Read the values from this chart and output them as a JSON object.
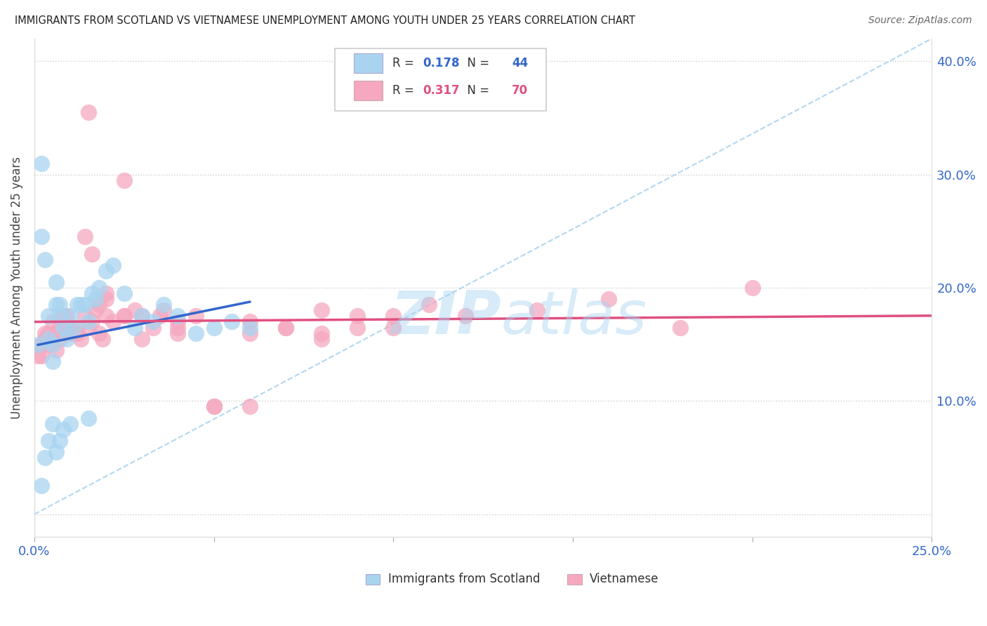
{
  "title": "IMMIGRANTS FROM SCOTLAND VS VIETNAMESE UNEMPLOYMENT AMONG YOUTH UNDER 25 YEARS CORRELATION CHART",
  "source": "Source: ZipAtlas.com",
  "ylabel": "Unemployment Among Youth under 25 years",
  "xlim": [
    0.0,
    0.25
  ],
  "ylim": [
    -0.02,
    0.42
  ],
  "y_ticks": [
    0.0,
    0.1,
    0.2,
    0.3,
    0.4
  ],
  "y_tick_labels": [
    "",
    "10.0%",
    "20.0%",
    "30.0%",
    "40.0%"
  ],
  "scotland_color": "#a8d4f0",
  "scottish_line_color": "#3366cc",
  "vietnamese_color": "#f5a8c0",
  "vietnamese_line_color": "#e05080",
  "dashed_line_color": "#a8d4f0",
  "scotland_R": 0.178,
  "scotland_N": 44,
  "vietnamese_R": 0.317,
  "vietnamese_N": 70,
  "background_color": "#ffffff",
  "watermark": "ZIPatlas",
  "scot_x": [
    0.001,
    0.002,
    0.002,
    0.003,
    0.004,
    0.004,
    0.005,
    0.005,
    0.006,
    0.006,
    0.007,
    0.007,
    0.008,
    0.009,
    0.01,
    0.011,
    0.012,
    0.013,
    0.014,
    0.015,
    0.016,
    0.017,
    0.018,
    0.02,
    0.022,
    0.025,
    0.028,
    0.03,
    0.033,
    0.036,
    0.04,
    0.045,
    0.05,
    0.055,
    0.06,
    0.002,
    0.003,
    0.004,
    0.005,
    0.006,
    0.007,
    0.008,
    0.01,
    0.015
  ],
  "scot_y": [
    0.15,
    0.31,
    0.245,
    0.225,
    0.175,
    0.155,
    0.15,
    0.135,
    0.205,
    0.185,
    0.185,
    0.175,
    0.165,
    0.155,
    0.175,
    0.165,
    0.185,
    0.185,
    0.185,
    0.17,
    0.195,
    0.19,
    0.2,
    0.215,
    0.22,
    0.195,
    0.165,
    0.175,
    0.17,
    0.185,
    0.175,
    0.16,
    0.165,
    0.17,
    0.165,
    0.025,
    0.05,
    0.065,
    0.08,
    0.055,
    0.065,
    0.075,
    0.08,
    0.085
  ],
  "viet_x": [
    0.001,
    0.002,
    0.003,
    0.004,
    0.005,
    0.006,
    0.007,
    0.008,
    0.009,
    0.01,
    0.011,
    0.012,
    0.013,
    0.014,
    0.015,
    0.016,
    0.017,
    0.018,
    0.019,
    0.02,
    0.022,
    0.025,
    0.028,
    0.03,
    0.033,
    0.036,
    0.04,
    0.045,
    0.05,
    0.06,
    0.07,
    0.08,
    0.09,
    0.1,
    0.11,
    0.12,
    0.14,
    0.16,
    0.18,
    0.2,
    0.002,
    0.003,
    0.004,
    0.005,
    0.006,
    0.007,
    0.008,
    0.009,
    0.01,
    0.012,
    0.014,
    0.016,
    0.018,
    0.02,
    0.025,
    0.03,
    0.035,
    0.04,
    0.05,
    0.06,
    0.07,
    0.08,
    0.09,
    0.1,
    0.015,
    0.02,
    0.025,
    0.04,
    0.06,
    0.08
  ],
  "viet_y": [
    0.14,
    0.15,
    0.155,
    0.16,
    0.155,
    0.145,
    0.165,
    0.16,
    0.175,
    0.16,
    0.16,
    0.165,
    0.155,
    0.175,
    0.165,
    0.17,
    0.18,
    0.16,
    0.155,
    0.175,
    0.17,
    0.175,
    0.18,
    0.175,
    0.165,
    0.18,
    0.17,
    0.175,
    0.095,
    0.17,
    0.165,
    0.18,
    0.165,
    0.175,
    0.185,
    0.175,
    0.18,
    0.19,
    0.165,
    0.2,
    0.14,
    0.16,
    0.15,
    0.17,
    0.16,
    0.155,
    0.175,
    0.165,
    0.165,
    0.16,
    0.245,
    0.23,
    0.185,
    0.195,
    0.295,
    0.155,
    0.175,
    0.165,
    0.095,
    0.16,
    0.165,
    0.16,
    0.175,
    0.165,
    0.355,
    0.19,
    0.175,
    0.16,
    0.095,
    0.155
  ]
}
